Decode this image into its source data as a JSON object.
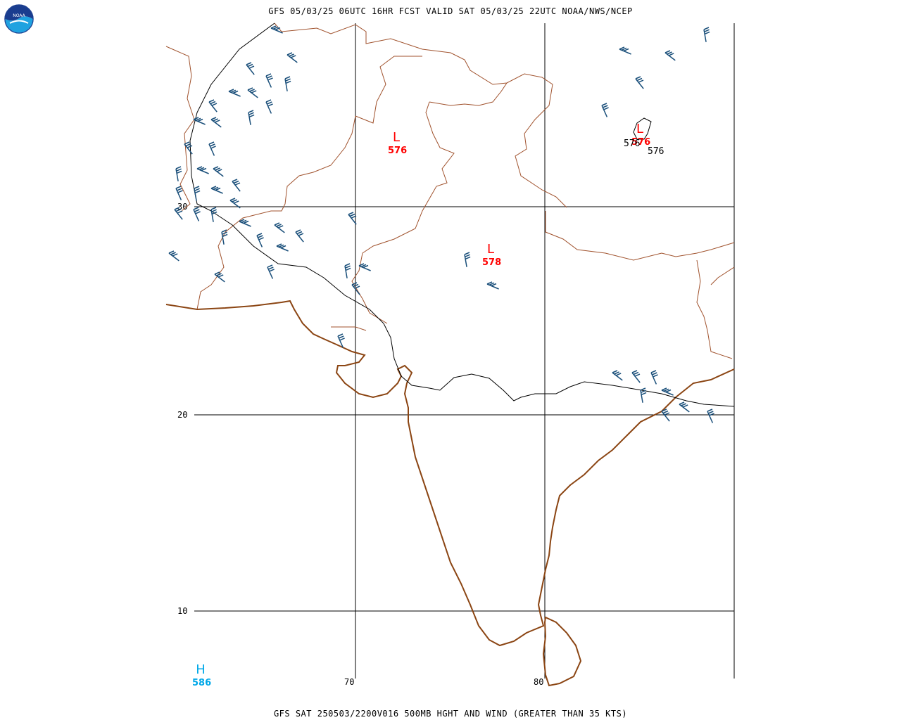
{
  "header": {
    "title": "GFS 05/03/25 06UTC 16HR FCST VALID SAT 05/03/25 22UTC NOAA/NWS/NCEP",
    "logo_text": "NOAA"
  },
  "footer": {
    "caption": "GFS SAT 250503/2200V016 500MB HGHT AND WIND (GREATER THAN 35 KTS)"
  },
  "map": {
    "lat_labels": [
      "30",
      "20",
      "10"
    ],
    "lon_labels": [
      "70",
      "80"
    ],
    "colors": {
      "coastline": "#8B4513",
      "border": "#A0522D",
      "grid": "#000000",
      "contour": "#000000",
      "low": "#ff0000",
      "high": "#00a8e8",
      "wind_barb": "#1a4f7a"
    },
    "centers": [
      {
        "type": "L",
        "value": "576",
        "color": "#ff0000"
      },
      {
        "type": "L",
        "value": "578",
        "color": "#ff0000"
      },
      {
        "type": "L",
        "value": "576",
        "color": "#ff0000"
      },
      {
        "type": "H",
        "value": "586",
        "color": "#00a8e8"
      }
    ],
    "contour_labels": [
      "576",
      "576"
    ]
  }
}
